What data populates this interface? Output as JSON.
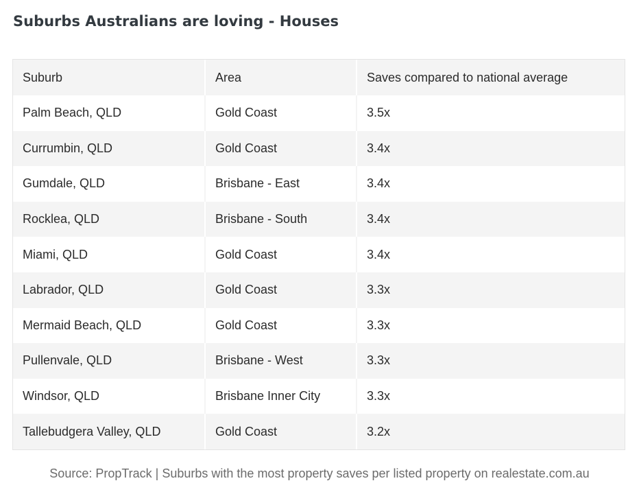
{
  "title": "Suburbs Australians are loving - Houses",
  "table": {
    "headers": [
      "Suburb",
      "Area",
      "Saves compared to national average"
    ],
    "rows": [
      [
        "Palm Beach, QLD",
        "Gold Coast",
        "3.5x"
      ],
      [
        "Currumbin, QLD",
        "Gold Coast",
        "3.4x"
      ],
      [
        "Gumdale, QLD",
        "Brisbane - East",
        "3.4x"
      ],
      [
        "Rocklea, QLD",
        "Brisbane - South",
        "3.4x"
      ],
      [
        "Miami, QLD",
        "Gold Coast",
        "3.4x"
      ],
      [
        "Labrador, QLD",
        "Gold Coast",
        "3.3x"
      ],
      [
        "Mermaid Beach, QLD",
        "Gold Coast",
        "3.3x"
      ],
      [
        "Pullenvale, QLD",
        "Brisbane - West",
        "3.3x"
      ],
      [
        "Windsor, QLD",
        "Brisbane Inner City",
        "3.3x"
      ],
      [
        "Tallebudgera Valley, QLD",
        "Gold Coast",
        "3.2x"
      ]
    ]
  },
  "source": "Source: PropTrack | Suburbs with the most property saves per listed property on realestate.com.au"
}
